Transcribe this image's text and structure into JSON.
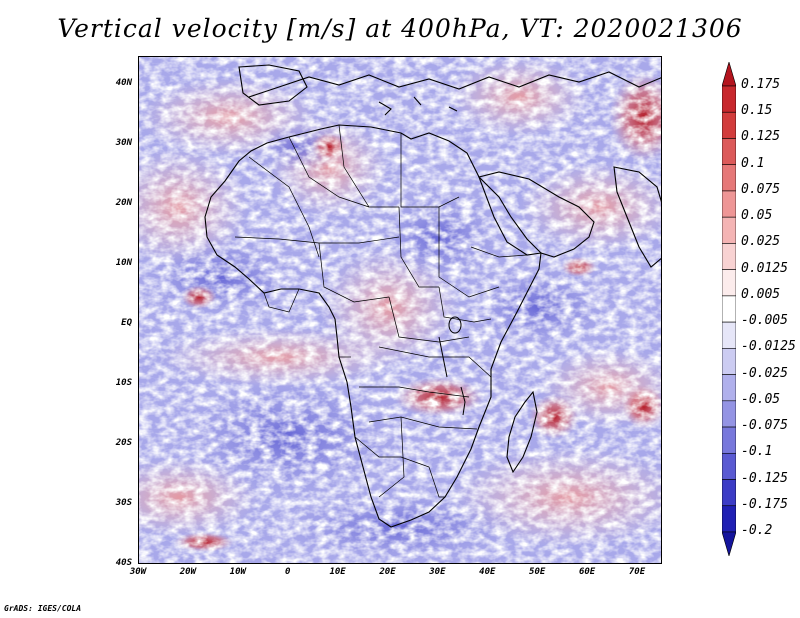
{
  "title": "Vertical velocity [m/s] at 400hPa, VT: 2020021306",
  "map": {
    "projection": "latlon",
    "lon_range": [
      -30,
      75
    ],
    "lat_range": [
      -40,
      45
    ],
    "lat_labels": [
      "40N",
      "30N",
      "20N",
      "10N",
      "EQ",
      "10S",
      "20S",
      "30S",
      "40S"
    ],
    "lon_labels": [
      "30W",
      "20W",
      "10W",
      "0",
      "10E",
      "20E",
      "30E",
      "40E",
      "50E",
      "60E",
      "70E"
    ]
  },
  "colorbar": {
    "levels": [
      "0.175",
      "0.15",
      "0.125",
      "0.1",
      "0.075",
      "0.05",
      "0.025",
      "0.0125",
      "0.005",
      "-0.005",
      "-0.0125",
      "-0.025",
      "-0.05",
      "-0.075",
      "-0.1",
      "-0.125",
      "-0.175",
      "-0.2"
    ],
    "colors": [
      "#b4141e",
      "#c8282d",
      "#d23c3c",
      "#dc5a5a",
      "#e67878",
      "#ee9696",
      "#f4b4b4",
      "#f8d2d2",
      "#fcecec",
      "#ffffff",
      "#e6e6f8",
      "#ccccf2",
      "#b0b0ec",
      "#9494e4",
      "#7878dc",
      "#5a5ad2",
      "#3c3cc6",
      "#2020b4",
      "#14149c"
    ]
  },
  "credit": "GrADS: IGES/COLA"
}
